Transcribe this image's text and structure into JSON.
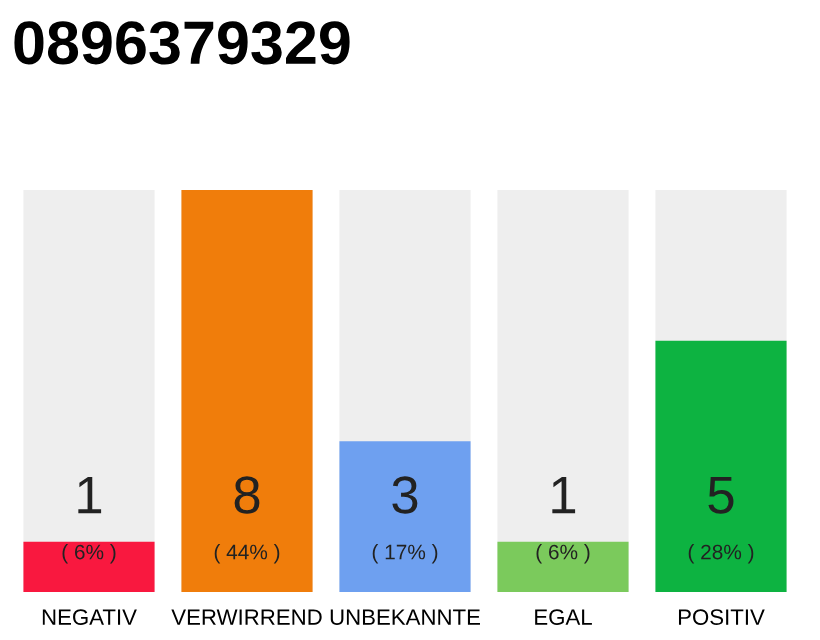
{
  "chart_data": {
    "type": "bar",
    "title": "0896379329",
    "categories": [
      "NEGATIV",
      "VERWIRREND",
      "UNBEKANNTE",
      "EGAL",
      "POSITIV"
    ],
    "values": [
      1,
      8,
      3,
      1,
      5
    ],
    "colors": [
      "#f9183f",
      "#f07d0b",
      "#6ea0f0",
      "#7bca5c",
      "#0db341"
    ],
    "data_labels": true,
    "annotations": [
      "( 6% )",
      "( 44% )",
      "( 17% )",
      "( 6% )",
      "( 28% )"
    ],
    "grid": false,
    "legend": false
  }
}
